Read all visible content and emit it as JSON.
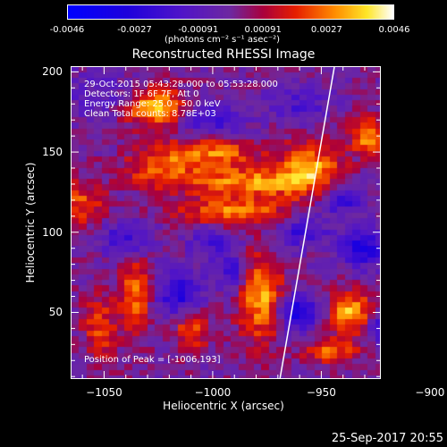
{
  "colorbar": {
    "ticks": [
      "-0.0046",
      "-0.0027",
      "-0.00091",
      "0.00091",
      "0.0027",
      "0.0046"
    ],
    "units": "(photons cm⁻² s⁻¹ asec⁻²)"
  },
  "chart_data": {
    "type": "heatmap",
    "title": "Reconstructed RHESSI Image",
    "xlabel": "Heliocentric X (arcsec)",
    "ylabel": "Heliocentric Y (arcsec)",
    "xlim": [
      -1065,
      -923
    ],
    "ylim": [
      9,
      203
    ],
    "zlim": [
      -0.0046,
      0.0046
    ],
    "xticks": [
      -1050,
      -1000,
      -950,
      -900
    ],
    "xtick_labels": [
      "−1050",
      "−1000",
      "−950",
      "−900"
    ],
    "yticks": [
      50,
      100,
      150,
      200
    ],
    "ytick_labels": [
      "50",
      "100",
      "150",
      "200"
    ],
    "limb_line": [
      [
        -969,
        9
      ],
      [
        -944,
        203
      ]
    ],
    "blobs": [
      {
        "x": -1027,
        "y": 178,
        "amp": 0.0035,
        "sx": 10,
        "sy": 9
      },
      {
        "x": -1000,
        "y": 150,
        "amp": 0.0028,
        "sx": 14,
        "sy": 6
      },
      {
        "x": -1025,
        "y": 140,
        "amp": 0.0022,
        "sx": 12,
        "sy": 8
      },
      {
        "x": -985,
        "y": 131,
        "amp": 0.003,
        "sx": 22,
        "sy": 7
      },
      {
        "x": -955,
        "y": 140,
        "amp": 0.003,
        "sx": 10,
        "sy": 12
      },
      {
        "x": -990,
        "y": 112,
        "amp": 0.0028,
        "sx": 18,
        "sy": 6
      },
      {
        "x": -1060,
        "y": 118,
        "amp": 0.0022,
        "sx": 7,
        "sy": 10
      },
      {
        "x": -906,
        "y": 103,
        "amp": 0.0045,
        "sx": 7,
        "sy": 9
      },
      {
        "x": -928,
        "y": 160,
        "amp": 0.003,
        "sx": 6,
        "sy": 8
      },
      {
        "x": -906,
        "y": 65,
        "amp": 0.0038,
        "sx": 7,
        "sy": 8
      },
      {
        "x": -936,
        "y": 50,
        "amp": 0.0034,
        "sx": 7,
        "sy": 9
      },
      {
        "x": -978,
        "y": 60,
        "amp": 0.0032,
        "sx": 7,
        "sy": 20
      },
      {
        "x": -1036,
        "y": 60,
        "amp": 0.0026,
        "sx": 5,
        "sy": 18
      },
      {
        "x": -1052,
        "y": 40,
        "amp": 0.0022,
        "sx": 5,
        "sy": 14
      },
      {
        "x": -1010,
        "y": 40,
        "amp": 0.0024,
        "sx": 6,
        "sy": 10
      },
      {
        "x": -945,
        "y": 25,
        "amp": 0.0024,
        "sx": 9,
        "sy": 6
      },
      {
        "x": -1050,
        "y": 185,
        "amp": -0.0012,
        "sx": 12,
        "sy": 10
      },
      {
        "x": -905,
        "y": 80,
        "amp": -0.004,
        "sx": 7,
        "sy": 7
      },
      {
        "x": -930,
        "y": 90,
        "amp": -0.003,
        "sx": 8,
        "sy": 8
      },
      {
        "x": -960,
        "y": 50,
        "amp": -0.0034,
        "sx": 6,
        "sy": 8
      },
      {
        "x": -920,
        "y": 40,
        "amp": -0.0028,
        "sx": 6,
        "sy": 7
      },
      {
        "x": -1015,
        "y": 60,
        "amp": -0.0028,
        "sx": 7,
        "sy": 10
      },
      {
        "x": -990,
        "y": 75,
        "amp": -0.0022,
        "sx": 6,
        "sy": 8
      },
      {
        "x": -1040,
        "y": 95,
        "amp": -0.0022,
        "sx": 8,
        "sy": 8
      },
      {
        "x": -960,
        "y": 100,
        "amp": -0.002,
        "sx": 9,
        "sy": 7
      },
      {
        "x": -940,
        "y": 120,
        "amp": -0.0022,
        "sx": 8,
        "sy": 7
      },
      {
        "x": -1000,
        "y": 170,
        "amp": -0.0018,
        "sx": 10,
        "sy": 8
      },
      {
        "x": -960,
        "y": 180,
        "amp": -0.0015,
        "sx": 10,
        "sy": 8
      },
      {
        "x": -1000,
        "y": 95,
        "amp": -0.0016,
        "sx": 8,
        "sy": 7
      }
    ],
    "annotations": [
      "29-Oct-2015 05:43:28.000 to 05:53:28.000",
      "Detectors: 1F 6F 7F, Att 0",
      "Energy Range: 25.0 - 50.0 keV",
      "Clean     Total counts: 8.78E+03"
    ],
    "peak_label": "Position of Peak = [-1006,193]"
  },
  "timestamp": "25-Sep-2017 20:55"
}
